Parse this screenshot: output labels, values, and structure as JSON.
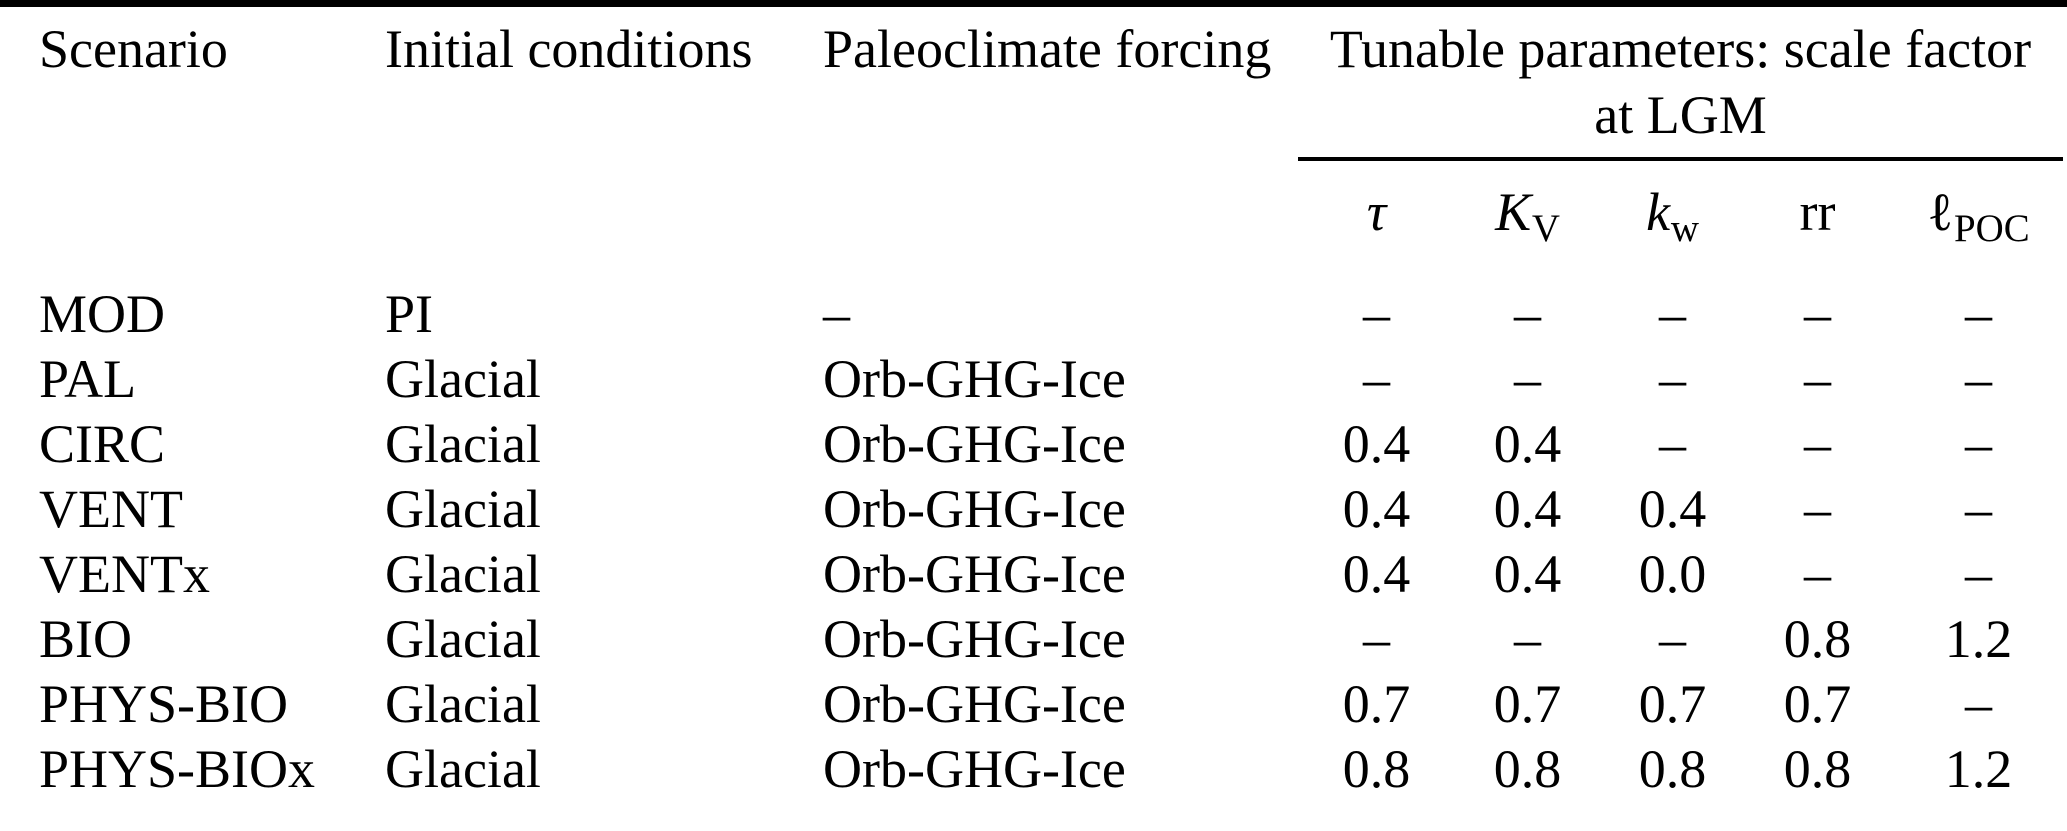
{
  "page": {
    "background": "#ffffff",
    "text_color": "#000000"
  },
  "table": {
    "header": {
      "scenario": "Scenario",
      "initial_conditions": "Initial conditions",
      "paleoclimate_forcing": "Paleoclimate forcing",
      "tunable_group": {
        "line1": "Tunable parameters: scale factor",
        "line2": "at LGM"
      },
      "param_headers": [
        {
          "text": "τ",
          "sub": "",
          "italic": true
        },
        {
          "text": "K",
          "sub": "V",
          "italic": true
        },
        {
          "text": "k",
          "sub": "w",
          "italic": true
        },
        {
          "text": "rr",
          "sub": "",
          "italic": false
        },
        {
          "text": "ℓ",
          "sub": "POC",
          "italic": false
        }
      ]
    },
    "rows": [
      {
        "scenario": "MOD",
        "initial_conditions": "PI",
        "paleoclimate_forcing": "–",
        "tau": "–",
        "k_v": "–",
        "k_w": "–",
        "rr": "–",
        "l_poc": "–"
      },
      {
        "scenario": "PAL",
        "initial_conditions": "Glacial",
        "paleoclimate_forcing": "Orb-GHG-Ice",
        "tau": "–",
        "k_v": "–",
        "k_w": "–",
        "rr": "–",
        "l_poc": "–"
      },
      {
        "scenario": "CIRC",
        "initial_conditions": "Glacial",
        "paleoclimate_forcing": "Orb-GHG-Ice",
        "tau": "0.4",
        "k_v": "0.4",
        "k_w": "–",
        "rr": "–",
        "l_poc": "–"
      },
      {
        "scenario": "VENT",
        "initial_conditions": "Glacial",
        "paleoclimate_forcing": "Orb-GHG-Ice",
        "tau": "0.4",
        "k_v": "0.4",
        "k_w": "0.4",
        "rr": "–",
        "l_poc": "–"
      },
      {
        "scenario": "VENTx",
        "initial_conditions": "Glacial",
        "paleoclimate_forcing": "Orb-GHG-Ice",
        "tau": "0.4",
        "k_v": "0.4",
        "k_w": "0.0",
        "rr": "–",
        "l_poc": "–"
      },
      {
        "scenario": "BIO",
        "initial_conditions": "Glacial",
        "paleoclimate_forcing": "Orb-GHG-Ice",
        "tau": "–",
        "k_v": "–",
        "k_w": "–",
        "rr": "0.8",
        "l_poc": "1.2"
      },
      {
        "scenario": "PHYS-BIO",
        "initial_conditions": "Glacial",
        "paleoclimate_forcing": "Orb-GHG-Ice",
        "tau": "0.7",
        "k_v": "0.7",
        "k_w": "0.7",
        "rr": "0.7",
        "l_poc": "–"
      },
      {
        "scenario": "PHYS-BIOx",
        "initial_conditions": "Glacial",
        "paleoclimate_forcing": "Orb-GHG-Ice",
        "tau": "0.8",
        "k_v": "0.8",
        "k_w": "0.8",
        "rr": "0.8",
        "l_poc": "1.2"
      }
    ]
  }
}
